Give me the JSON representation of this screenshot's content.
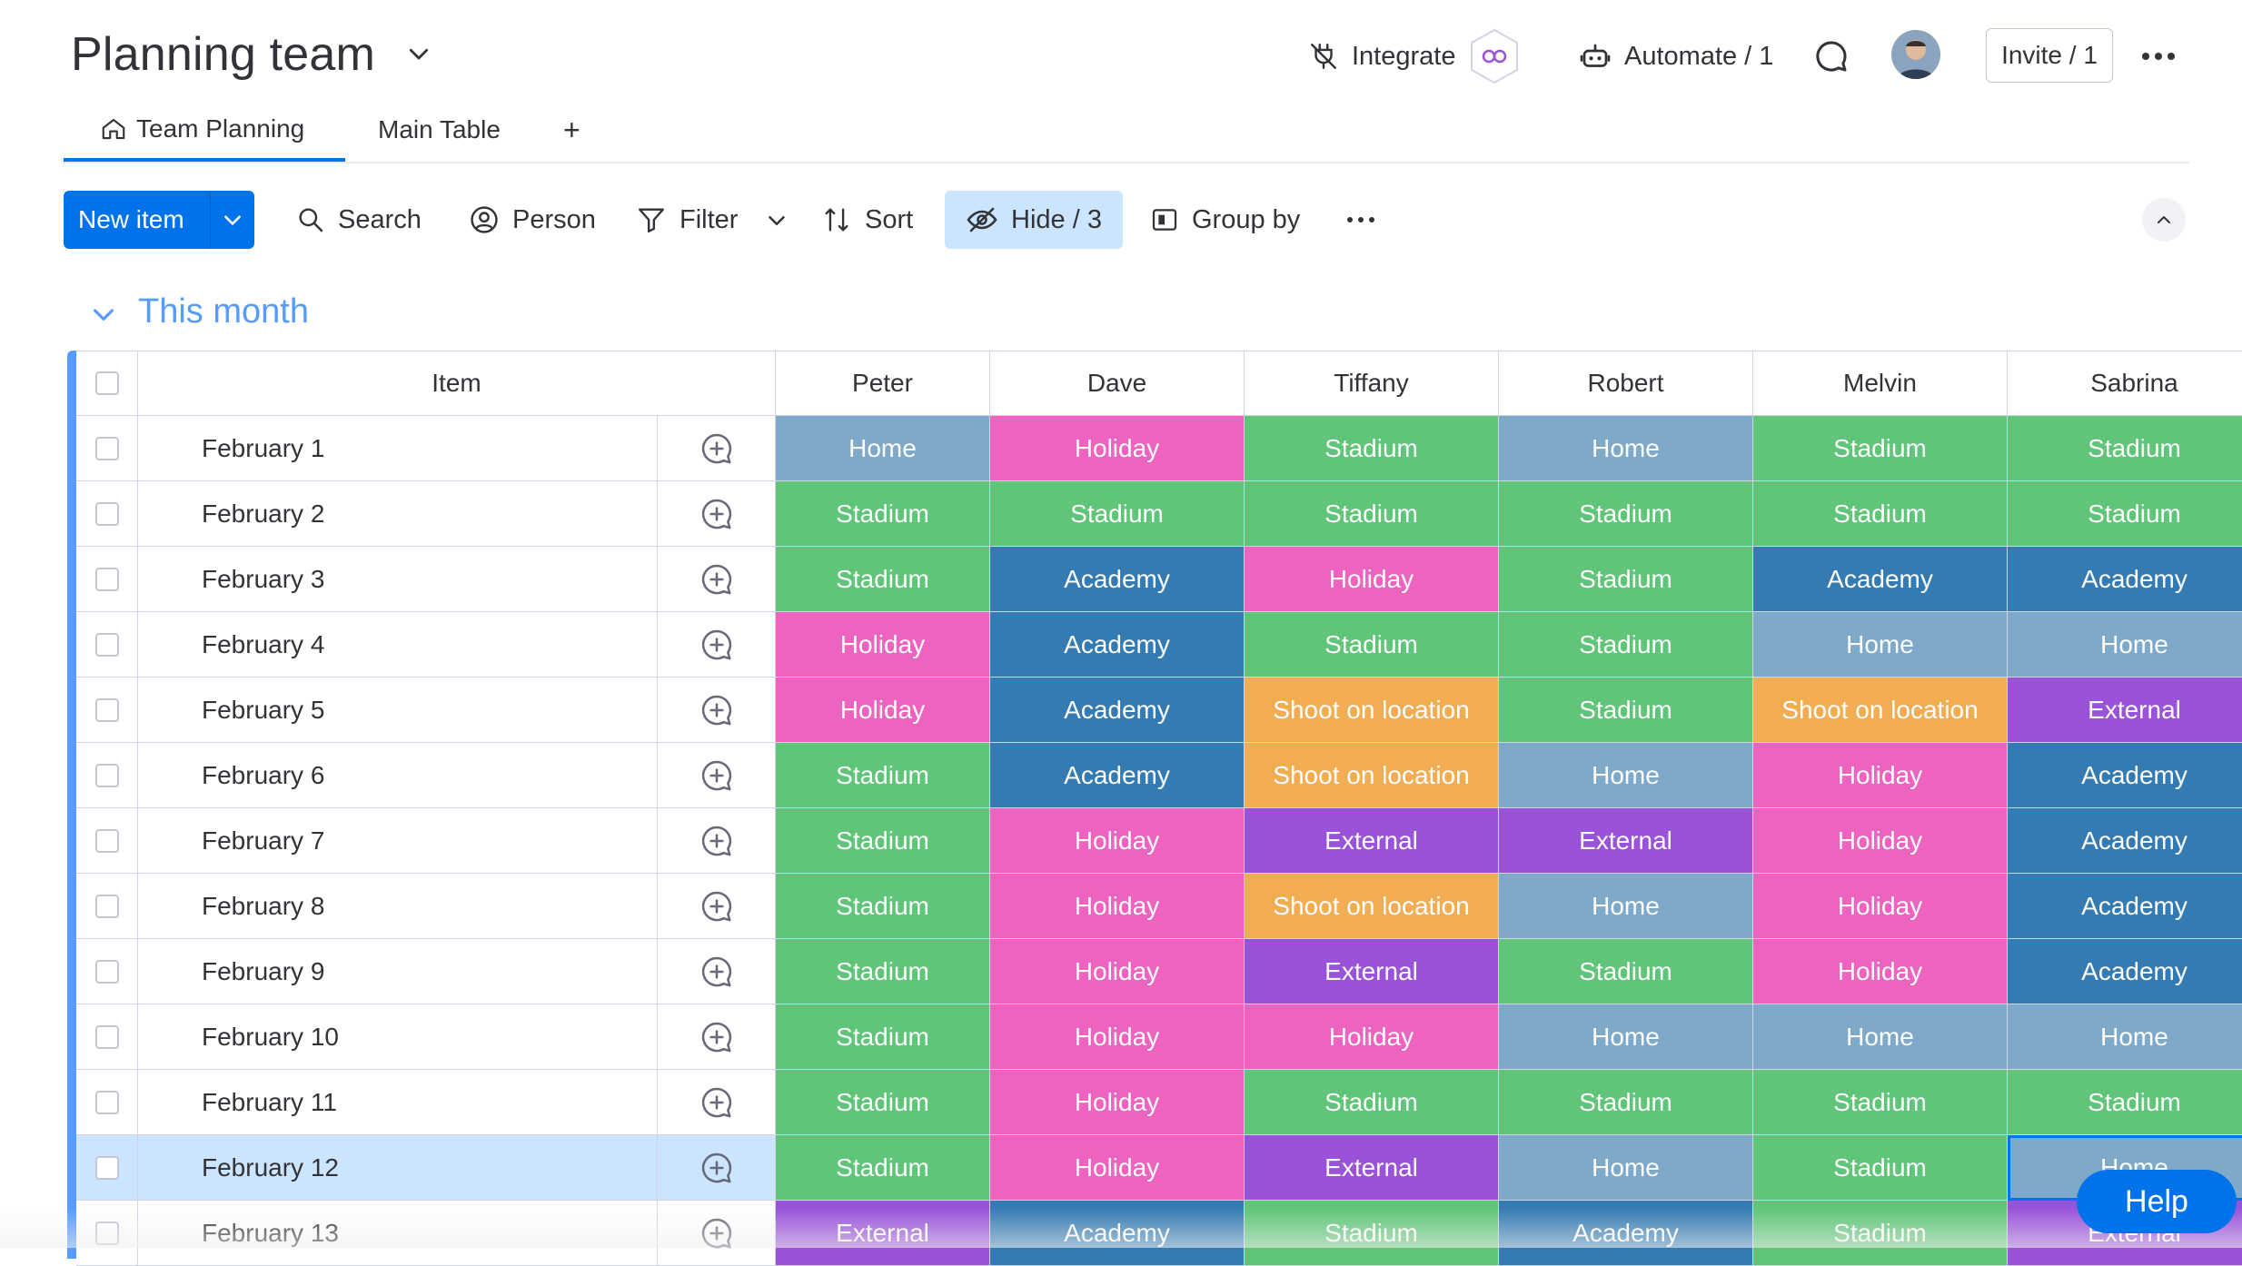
{
  "header": {
    "board_title": "Planning team",
    "integrate_label": "Integrate",
    "automate_label": "Automate / 1",
    "invite_label": "Invite / 1"
  },
  "tabs": [
    {
      "label": "Team Planning",
      "icon": "home-icon",
      "active": true
    },
    {
      "label": "Main Table",
      "active": false
    },
    {
      "label": "+"
    }
  ],
  "toolbar": {
    "new_item_label": "New item",
    "search_label": "Search",
    "person_label": "Person",
    "filter_label": "Filter",
    "sort_label": "Sort",
    "hide_label": "Hide / 3",
    "group_by_label": "Group by"
  },
  "group": {
    "title": "This month",
    "color": "#579bfc"
  },
  "table": {
    "item_header": "Item",
    "people": [
      "Peter",
      "Dave",
      "Tiffany",
      "Robert",
      "Melvin",
      "Sabrina"
    ],
    "status_colors": {
      "Home": "#7fa9c9",
      "Holiday": "#ef63c0",
      "Stadium": "#5fc578",
      "Academy": "#347bb3",
      "Shoot on location": "#f2ad52",
      "External": "#9a52d9"
    },
    "rows": [
      {
        "item": "February 1",
        "cells": [
          "Home",
          "Holiday",
          "Stadium",
          "Home",
          "Stadium",
          "Stadium"
        ]
      },
      {
        "item": "February 2",
        "cells": [
          "Stadium",
          "Stadium",
          "Stadium",
          "Stadium",
          "Stadium",
          "Stadium"
        ]
      },
      {
        "item": "February 3",
        "cells": [
          "Stadium",
          "Academy",
          "Holiday",
          "Stadium",
          "Academy",
          "Academy"
        ]
      },
      {
        "item": "February 4",
        "cells": [
          "Holiday",
          "Academy",
          "Stadium",
          "Stadium",
          "Home",
          "Home"
        ]
      },
      {
        "item": "February 5",
        "cells": [
          "Holiday",
          "Academy",
          "Shoot on location",
          "Stadium",
          "Shoot on location",
          "External"
        ]
      },
      {
        "item": "February 6",
        "cells": [
          "Stadium",
          "Academy",
          "Shoot on location",
          "Home",
          "Holiday",
          "Academy"
        ]
      },
      {
        "item": "February 7",
        "cells": [
          "Stadium",
          "Holiday",
          "External",
          "External",
          "Holiday",
          "Academy"
        ]
      },
      {
        "item": "February 8",
        "cells": [
          "Stadium",
          "Holiday",
          "Shoot on location",
          "Home",
          "Holiday",
          "Academy"
        ]
      },
      {
        "item": "February 9",
        "cells": [
          "Stadium",
          "Holiday",
          "External",
          "Stadium",
          "Holiday",
          "Academy"
        ]
      },
      {
        "item": "February 10",
        "cells": [
          "Stadium",
          "Holiday",
          "Holiday",
          "Home",
          "Home",
          "Home"
        ]
      },
      {
        "item": "February 11",
        "cells": [
          "Stadium",
          "Holiday",
          "Stadium",
          "Stadium",
          "Stadium",
          "Stadium"
        ]
      },
      {
        "item": "February 12",
        "cells": [
          "Stadium",
          "Holiday",
          "External",
          "Home",
          "Stadium",
          "Home"
        ],
        "selected": true
      },
      {
        "item": "February 13",
        "cells": [
          "External",
          "Academy",
          "Stadium",
          "Academy",
          "Stadium",
          "External"
        ]
      }
    ]
  },
  "help_label": "Help"
}
